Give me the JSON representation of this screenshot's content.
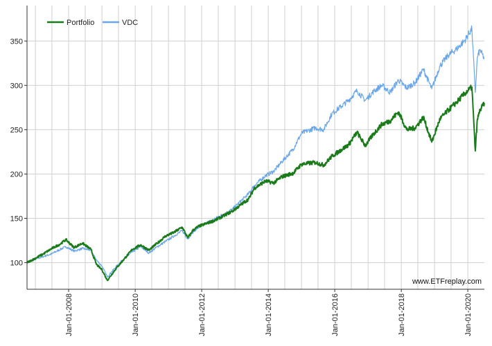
{
  "chart_data": {
    "type": "line",
    "title": "",
    "xlabel": "",
    "ylabel": "",
    "xlim": [
      "2006-10-01",
      "2020-07-01"
    ],
    "ylim": [
      70,
      390
    ],
    "yticks": [
      100,
      150,
      200,
      250,
      300,
      350
    ],
    "xticks": [
      "2008-01-01",
      "2010-01-01",
      "2012-01-01",
      "2014-01-01",
      "2016-01-01",
      "2018-01-01",
      "2020-01-01"
    ],
    "xtick_labels": [
      "Jan-01-2008",
      "Jan-01-2010",
      "Jan-01-2012",
      "Jan-01-2014",
      "Jan-01-2016",
      "Jan-01-2018",
      "Jan-01-2020"
    ],
    "grid": true,
    "legend_position": "top-left",
    "series": [
      {
        "name": "Portfolio",
        "color": "#1a7a1a",
        "points": [
          [
            "2006-10-01",
            100
          ],
          [
            "2007-01-01",
            105
          ],
          [
            "2007-04-01",
            110
          ],
          [
            "2007-07-01",
            116
          ],
          [
            "2007-10-01",
            121
          ],
          [
            "2007-12-01",
            126
          ],
          [
            "2008-03-01",
            117
          ],
          [
            "2008-06-01",
            122
          ],
          [
            "2008-09-01",
            115
          ],
          [
            "2008-11-01",
            98
          ],
          [
            "2009-01-01",
            92
          ],
          [
            "2009-03-01",
            80
          ],
          [
            "2009-06-01",
            93
          ],
          [
            "2009-09-01",
            104
          ],
          [
            "2009-12-01",
            115
          ],
          [
            "2010-03-01",
            120
          ],
          [
            "2010-06-01",
            114
          ],
          [
            "2010-09-01",
            122
          ],
          [
            "2010-12-01",
            130
          ],
          [
            "2011-03-01",
            134
          ],
          [
            "2011-06-01",
            140
          ],
          [
            "2011-08-01",
            128
          ],
          [
            "2011-10-01",
            137
          ],
          [
            "2011-12-01",
            141
          ],
          [
            "2012-06-01",
            148
          ],
          [
            "2012-12-01",
            158
          ],
          [
            "2013-06-01",
            172
          ],
          [
            "2013-08-01",
            184
          ],
          [
            "2013-12-01",
            192
          ],
          [
            "2014-03-01",
            190
          ],
          [
            "2014-06-01",
            197
          ],
          [
            "2014-10-01",
            201
          ],
          [
            "2015-01-01",
            211
          ],
          [
            "2015-06-01",
            213
          ],
          [
            "2015-09-01",
            210
          ],
          [
            "2015-12-01",
            220
          ],
          [
            "2016-06-01",
            233
          ],
          [
            "2016-09-01",
            247
          ],
          [
            "2016-12-01",
            232
          ],
          [
            "2017-03-01",
            245
          ],
          [
            "2017-06-01",
            256
          ],
          [
            "2017-09-01",
            260
          ],
          [
            "2017-12-01",
            270
          ],
          [
            "2018-03-01",
            250
          ],
          [
            "2018-06-01",
            252
          ],
          [
            "2018-09-01",
            264
          ],
          [
            "2018-12-01",
            236
          ],
          [
            "2019-03-01",
            262
          ],
          [
            "2019-06-01",
            272
          ],
          [
            "2019-09-01",
            281
          ],
          [
            "2019-12-01",
            291
          ],
          [
            "2020-02-15",
            298
          ],
          [
            "2020-03-23",
            226
          ],
          [
            "2020-04-15",
            262
          ],
          [
            "2020-05-15",
            272
          ],
          [
            "2020-06-30",
            280
          ]
        ]
      },
      {
        "name": "VDC",
        "color": "#6aa6e8",
        "points": [
          [
            "2006-10-01",
            100
          ],
          [
            "2007-01-01",
            104
          ],
          [
            "2007-04-01",
            107
          ],
          [
            "2007-07-01",
            110
          ],
          [
            "2007-10-01",
            115
          ],
          [
            "2007-12-01",
            118
          ],
          [
            "2008-03-01",
            113
          ],
          [
            "2008-06-01",
            116
          ],
          [
            "2008-09-01",
            114
          ],
          [
            "2008-11-01",
            103
          ],
          [
            "2009-01-01",
            96
          ],
          [
            "2009-03-01",
            84
          ],
          [
            "2009-06-01",
            95
          ],
          [
            "2009-09-01",
            105
          ],
          [
            "2009-12-01",
            112
          ],
          [
            "2010-03-01",
            118
          ],
          [
            "2010-06-01",
            111
          ],
          [
            "2010-09-01",
            118
          ],
          [
            "2010-12-01",
            124
          ],
          [
            "2011-03-01",
            130
          ],
          [
            "2011-06-01",
            136
          ],
          [
            "2011-08-01",
            127
          ],
          [
            "2011-10-01",
            135
          ],
          [
            "2011-12-01",
            140
          ],
          [
            "2012-06-01",
            150
          ],
          [
            "2012-12-01",
            160
          ],
          [
            "2013-06-01",
            178
          ],
          [
            "2013-08-01",
            187
          ],
          [
            "2013-12-01",
            198
          ],
          [
            "2014-03-01",
            203
          ],
          [
            "2014-06-01",
            214
          ],
          [
            "2014-10-01",
            228
          ],
          [
            "2015-01-01",
            246
          ],
          [
            "2015-06-01",
            252
          ],
          [
            "2015-09-01",
            250
          ],
          [
            "2015-12-01",
            268
          ],
          [
            "2016-06-01",
            283
          ],
          [
            "2016-09-01",
            294
          ],
          [
            "2016-12-01",
            283
          ],
          [
            "2017-03-01",
            293
          ],
          [
            "2017-06-01",
            300
          ],
          [
            "2017-09-01",
            292
          ],
          [
            "2017-12-01",
            306
          ],
          [
            "2018-03-01",
            297
          ],
          [
            "2018-06-01",
            303
          ],
          [
            "2018-09-01",
            318
          ],
          [
            "2018-12-01",
            296
          ],
          [
            "2019-03-01",
            322
          ],
          [
            "2019-06-01",
            334
          ],
          [
            "2019-09-01",
            341
          ],
          [
            "2019-12-01",
            351
          ],
          [
            "2020-02-15",
            364
          ],
          [
            "2020-03-23",
            292
          ],
          [
            "2020-04-15",
            332
          ],
          [
            "2020-05-15",
            340
          ],
          [
            "2020-06-30",
            330
          ]
        ]
      }
    ]
  },
  "watermark": "www.ETFreplay.com"
}
